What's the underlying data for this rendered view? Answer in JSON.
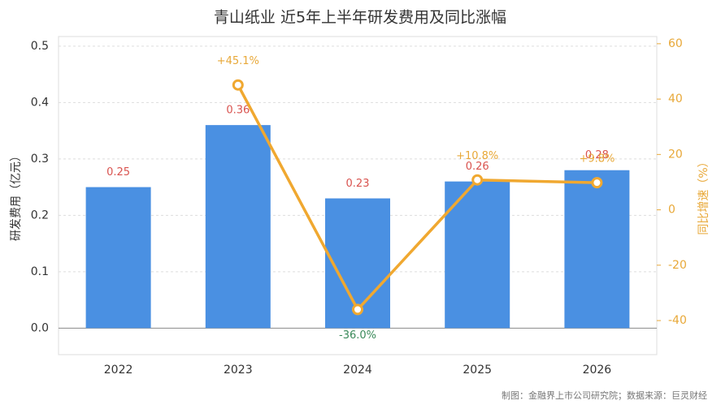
{
  "chart_data": {
    "type": "bar-line",
    "title": "青山纸业 近5年上半年研发费用及同比涨幅",
    "y_label": "研发费用（亿元）",
    "y2_label": "同比增速（%）",
    "note": "制图：金融界上市公司研究院；数据来源：巨灵财经",
    "categories": [
      "2022",
      "2023",
      "2024",
      "2025",
      "2026"
    ],
    "series": [
      {
        "name": "研发费用",
        "type": "bar",
        "color": "#4a90e2",
        "values": [
          0.25,
          0.36,
          0.23,
          0.26,
          0.28
        ]
      },
      {
        "name": "同比增速",
        "type": "line",
        "axis": "y2",
        "color": "#f0a830",
        "values": [
          null,
          45.1,
          -36.0,
          10.8,
          9.8
        ],
        "value_labels": [
          null,
          "+45.1%",
          "-36.0%",
          "+10.8%",
          "+9.8%"
        ]
      }
    ],
    "ylim": [
      -0.047,
      0.517
    ],
    "yticks": [
      {
        "value": 0,
        "label": "0.0"
      },
      0.1,
      0.2,
      0.3,
      0.4,
      0.5
    ],
    "y2lim": [
      -52.3,
      62.6
    ],
    "y2ticks": [
      -40,
      -20,
      0,
      20,
      40,
      60
    ],
    "grid": true
  }
}
